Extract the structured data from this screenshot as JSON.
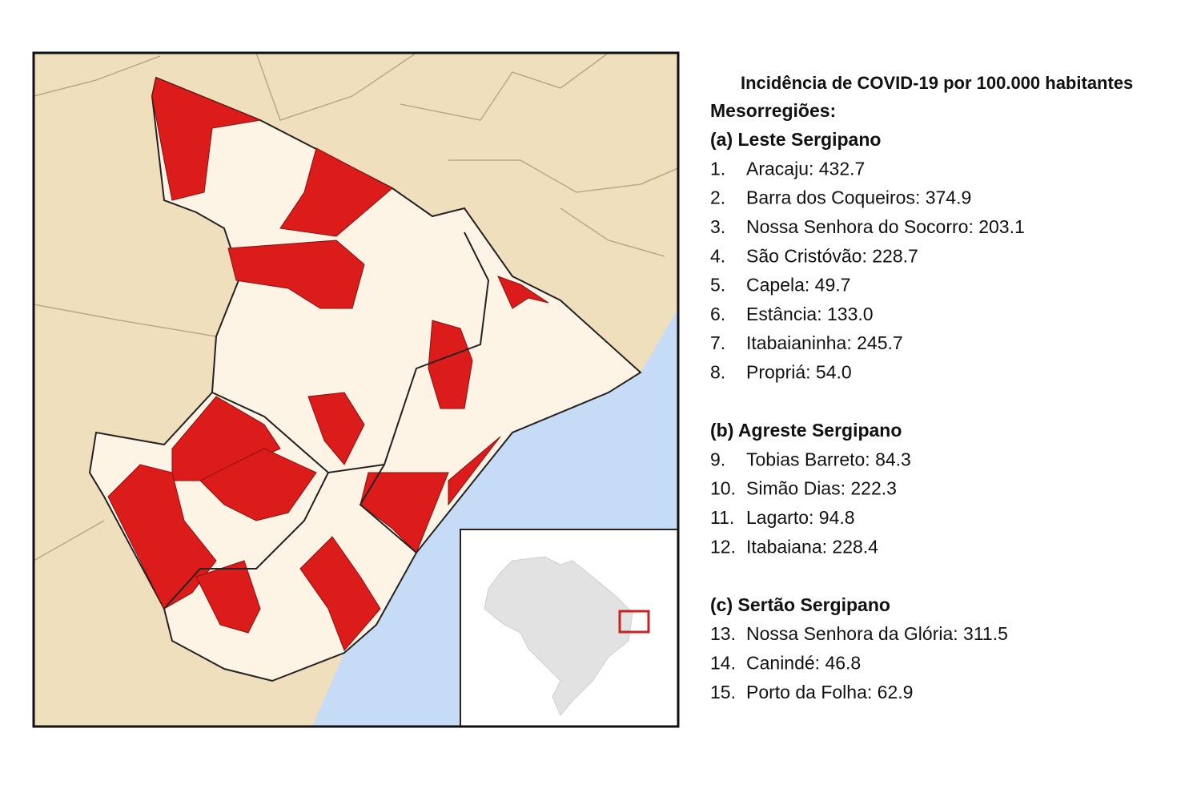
{
  "legend": {
    "title": "Incidência de COVID-19 por 100.000 habitantes",
    "subtitle": "Mesorregiões:",
    "groups": [
      {
        "heading": "(a) Leste Sergipano",
        "items": [
          {
            "number": "1.",
            "label": "Aracaju: 432.7"
          },
          {
            "number": "2.",
            "label": "Barra dos Coqueiros: 374.9"
          },
          {
            "number": "3.",
            "label": "Nossa Senhora do Socorro: 203.1"
          },
          {
            "number": "4.",
            "label": "São Cristóvão: 228.7"
          },
          {
            "number": "5.",
            "label": "Capela: 49.7"
          },
          {
            "number": "6.",
            "label": "Estância: 133.0"
          },
          {
            "number": "7.",
            "label": "Itabaianinha: 245.7"
          },
          {
            "number": "8.",
            "label": "Propriá: 54.0"
          }
        ]
      },
      {
        "heading": "(b) Agreste Sergipano",
        "items": [
          {
            "number": "9.",
            "label": "Tobias Barreto: 84.3"
          },
          {
            "number": "10.",
            "label": "Simão Dias: 222.3"
          },
          {
            "number": "11.",
            "label": "Lagarto: 94.8"
          },
          {
            "number": "12.",
            "label": "Itabaiana: 228.4"
          }
        ]
      },
      {
        "heading": "(c) Sertão Sergipano",
        "items": [
          {
            "number": "13.",
            "label": "Nossa Senhora da Glória: 311.5"
          },
          {
            "number": "14.",
            "label": "Canindé: 46.8"
          },
          {
            "number": "15.",
            "label": "Porto da Folha: 62.9"
          }
        ]
      }
    ]
  }
}
